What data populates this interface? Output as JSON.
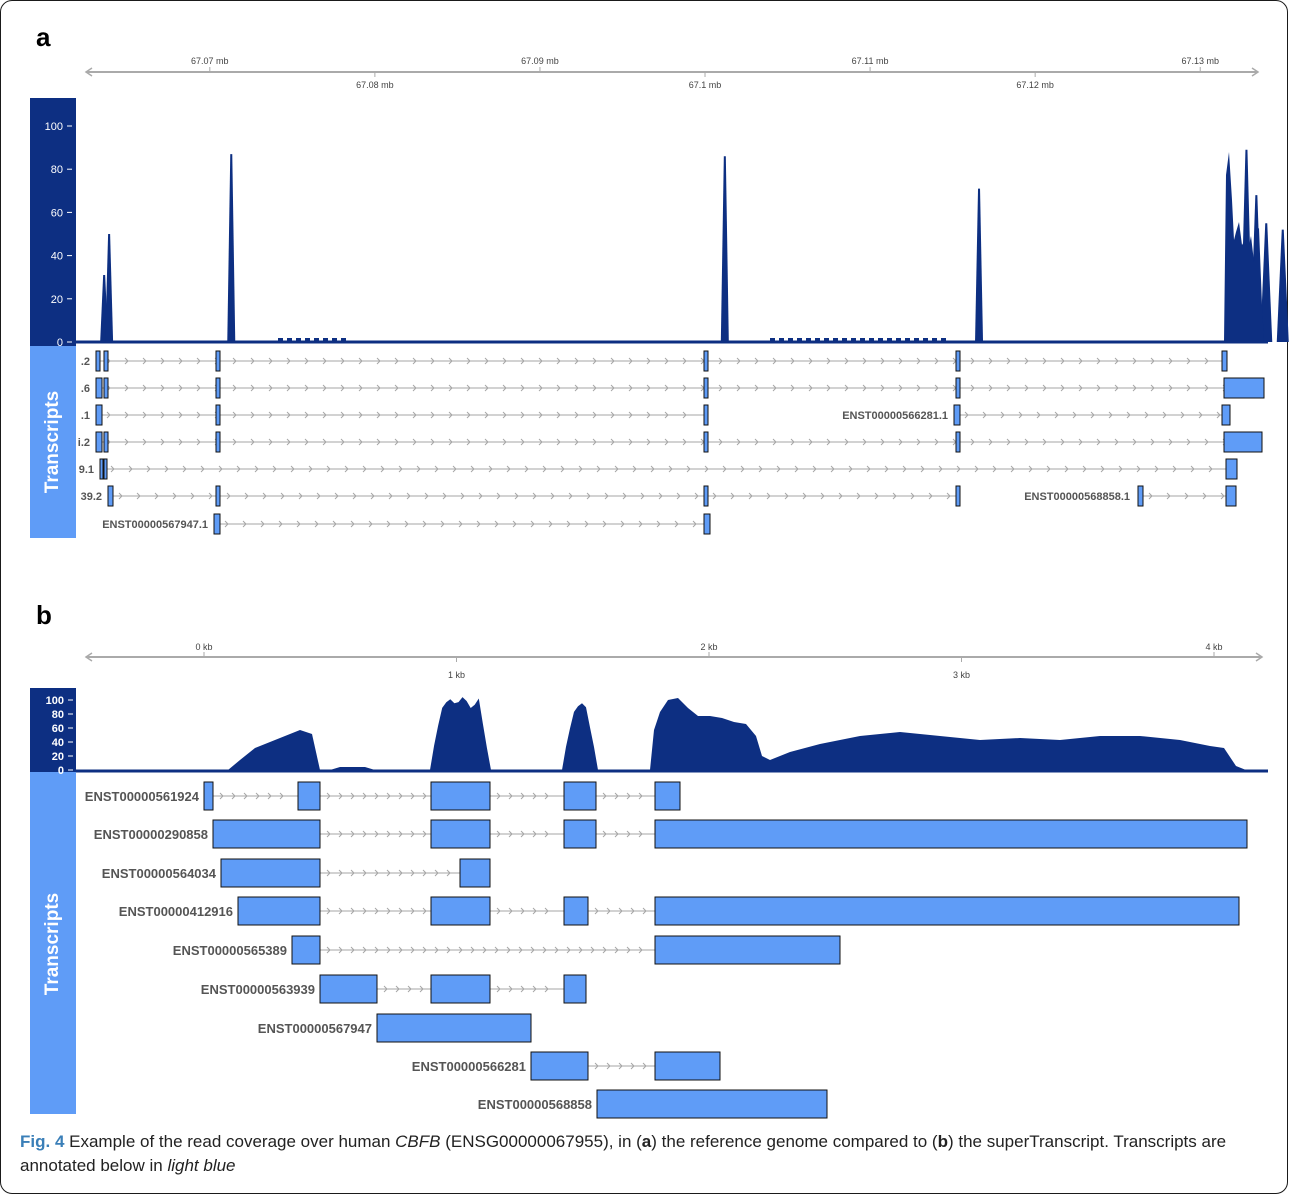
{
  "panels": {
    "a": {
      "letter": "a",
      "axis": {
        "range_mb": [
          67.0625,
          67.1335
        ],
        "ticks_top": [
          "67.07 mb",
          "67.09 mb",
          "67.11 mb",
          "67.13 mb"
        ],
        "ticks_top_values": [
          67.07,
          67.09,
          67.11,
          67.13
        ],
        "ticks_bottom": [
          "67.08 mb",
          "67.1 mb",
          "67.12 mb"
        ],
        "ticks_bottom_values": [
          67.08,
          67.1,
          67.12
        ]
      },
      "coverage_ticks": [
        "0",
        "20",
        "40",
        "60",
        "80",
        "100"
      ],
      "coverage_ylim": [
        0,
        110
      ],
      "coverage_peaks_mb": [
        {
          "x": 67.0636,
          "y": 31
        },
        {
          "x": 67.0639,
          "y": 50
        },
        {
          "x": 67.0713,
          "y": 87
        },
        {
          "x": 67.1012,
          "y": 86
        },
        {
          "x": 67.1166,
          "y": 71
        },
        {
          "x": 67.1328,
          "y": 89
        },
        {
          "x": 67.1334,
          "y": 68
        },
        {
          "x": 67.134,
          "y": 55
        },
        {
          "x": 67.135,
          "y": 52
        }
      ],
      "track_label": "Transcripts",
      "transcript_labels": [
        ".2",
        ".6",
        ".1",
        "i.2",
        "9.1",
        "39.2",
        "ENST00000567947.1",
        "ENST00000566281.1",
        "ENST00000568858.1"
      ]
    },
    "b": {
      "letter": "b",
      "axis": {
        "range_kb": [
          -0.42,
          4.18
        ],
        "ticks_top": [
          "0 kb",
          "2 kb",
          "4 kb"
        ],
        "ticks_top_values": [
          0,
          2,
          4
        ],
        "ticks_bottom": [
          "1 kb",
          "3 kb"
        ],
        "ticks_bottom_values": [
          1,
          3
        ]
      },
      "coverage_ticks": [
        "0",
        "20",
        "40",
        "60",
        "80",
        "100"
      ],
      "coverage_ylim": [
        0,
        110
      ],
      "track_label": "Transcripts",
      "transcripts": [
        {
          "name": "ENST00000561924",
          "exons_kb": [
            [
              0,
              0.04
            ],
            [
              0.38,
              0.47
            ],
            [
              0.9,
              1.14
            ],
            [
              1.43,
              1.56
            ],
            [
              1.79,
              1.9
            ]
          ]
        },
        {
          "name": "ENST00000290858",
          "exons_kb": [
            [
              0.03,
              0.47
            ],
            [
              0.9,
              1.14
            ],
            [
              1.43,
              1.56
            ],
            [
              1.79,
              4.13
            ]
          ]
        },
        {
          "name": "ENST00000564034",
          "exons_kb": [
            [
              0.06,
              0.47
            ],
            [
              1.03,
              1.14
            ]
          ]
        },
        {
          "name": "ENST00000412916",
          "exons_kb": [
            [
              0.13,
              0.47
            ],
            [
              0.9,
              1.14
            ],
            [
              1.43,
              1.53
            ],
            [
              1.79,
              4.1
            ]
          ]
        },
        {
          "name": "ENST00000565389",
          "exons_kb": [
            [
              0.35,
              0.47
            ],
            [
              1.79,
              2.52
            ]
          ]
        },
        {
          "name": "ENST00000563939",
          "exons_kb": [
            [
              0.47,
              0.69
            ],
            [
              0.9,
              1.14
            ],
            [
              1.43,
              1.52
            ]
          ]
        },
        {
          "name": "ENST00000567947",
          "exons_kb": [
            [
              0.69,
              1.3
            ]
          ]
        },
        {
          "name": "ENST00000566281",
          "exons_kb": [
            [
              1.3,
              1.53
            ],
            [
              1.79,
              2.05
            ]
          ]
        },
        {
          "name": "ENST00000568858",
          "exons_kb": [
            [
              1.56,
              2.47
            ]
          ]
        }
      ]
    }
  },
  "caption": {
    "label": "Fig. 4",
    "t1": " Example of the read coverage over human ",
    "gene": "CBFB",
    "t2": " (ENSG00000067955), in (",
    "a": "a",
    "t3": ") the reference genome compared to (",
    "b": "b",
    "t4": ") the superTranscript. Transcripts are annotated below in ",
    "color_word": "light blue"
  },
  "colors": {
    "coverage": "#0d2f82",
    "label_bar": "#5f9cf7",
    "exon": "#5f9cf7",
    "axis_bar": "#0d2f82",
    "intron": "#a6a6a6"
  }
}
